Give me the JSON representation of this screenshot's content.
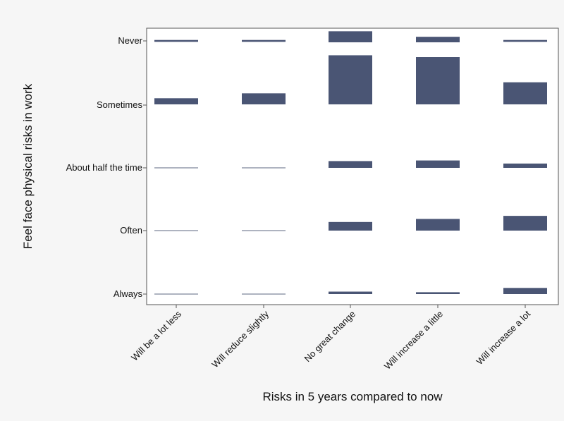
{
  "chart_data": {
    "type": "bar",
    "subtype": "spineplot",
    "xlabel": "Risks in 5 years compared to now",
    "ylabel": "Feel face physical risks in work",
    "categories": [
      "Will be a lot less",
      "Will reduce slightly",
      "No great change",
      "Will increase a little",
      "Will increase a lot"
    ],
    "y_categories": [
      "Never",
      "Sometimes",
      "About half the time",
      "Often",
      "Always"
    ],
    "series": [
      {
        "name": "Never",
        "values": [
          3,
          3,
          18,
          9,
          3
        ]
      },
      {
        "name": "Sometimes",
        "values": [
          10,
          18,
          80,
          77,
          36
        ]
      },
      {
        "name": "About half the time",
        "values": [
          1,
          1,
          11,
          12,
          7
        ]
      },
      {
        "name": "Often",
        "values": [
          1,
          1,
          14,
          19,
          24
        ]
      },
      {
        "name": "Always",
        "values": [
          0.5,
          0.5,
          4,
          3,
          10
        ]
      }
    ],
    "ylim": [
      0,
      100
    ],
    "grid": false,
    "colors": {
      "bar": "#4a5574",
      "plot_bg": "#ffffff",
      "page_bg": "#f6f6f6",
      "axis": "#555555"
    }
  }
}
